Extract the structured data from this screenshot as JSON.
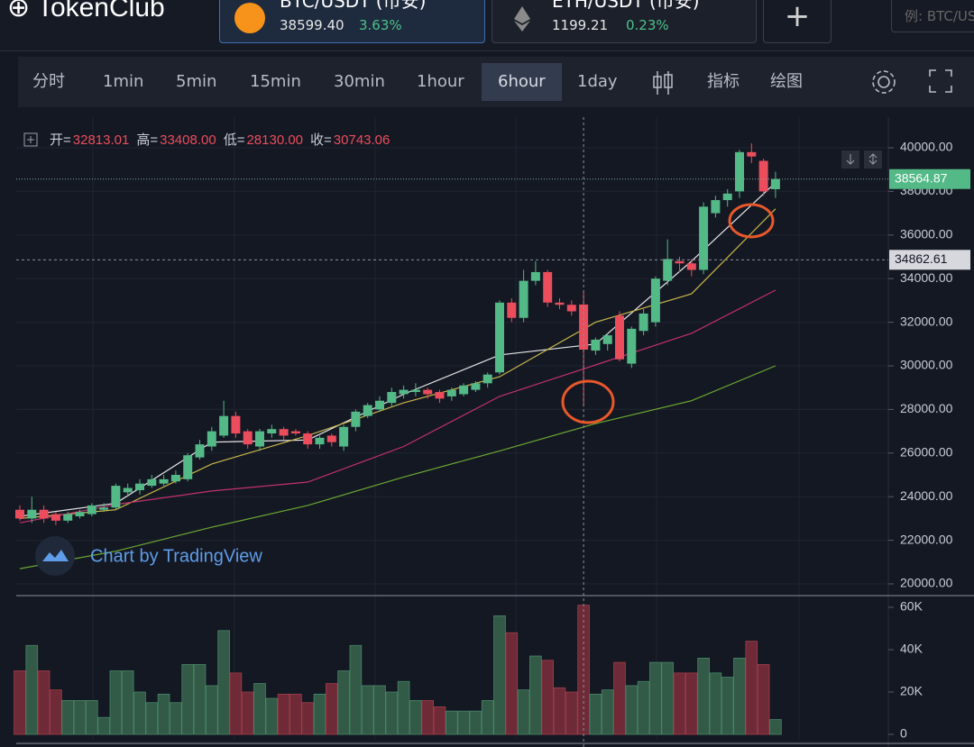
{
  "header": {
    "logo": "TokenClub",
    "tabs": [
      {
        "pair": "BTC/USDT (币安)",
        "price": "38599.40",
        "change": "3.63%"
      },
      {
        "pair": "ETH/USDT (币安)",
        "price": "1199.21",
        "change": "0.23%"
      }
    ],
    "add": "+",
    "search_placeholder": "例: BTC/USDT"
  },
  "toolbar": {
    "intervals": [
      "分时",
      "1min",
      "5min",
      "15min",
      "30min",
      "1hour",
      "6hour",
      "1day"
    ],
    "active": "6hour",
    "indicators": "指标",
    "drawing": "绘图"
  },
  "legend": [
    {
      "label": "开=",
      "value": "32813.01"
    },
    {
      "label": "高=",
      "value": "33408.00"
    },
    {
      "label": "低=",
      "value": "28130.00"
    },
    {
      "label": "收=",
      "value": "30743.06"
    }
  ],
  "watermark": "Chart by TradingView",
  "chart_data": {
    "type": "candlestick",
    "open": [
      23400,
      23000,
      23400,
      23200,
      22900,
      23100,
      23200,
      23400,
      23500,
      24200,
      24300,
      24500,
      24600,
      24700,
      24800,
      25800,
      26300,
      26800,
      27700,
      27000,
      26300,
      26900,
      27100,
      27000,
      26900,
      26400,
      26800,
      26300,
      27200,
      27700,
      28000,
      28300,
      28700,
      28800,
      28900,
      28800,
      28600,
      28700,
      28900,
      29200,
      29700,
      32900,
      32200,
      33900,
      34300,
      32900,
      32800,
      32813.01,
      30700,
      31000,
      32300,
      30100,
      31600,
      32000,
      33900,
      34800,
      34700,
      34400,
      37000,
      37600,
      38000,
      39800,
      39400,
      38100
    ],
    "high": [
      23600,
      24000,
      23600,
      23300,
      23300,
      23400,
      23700,
      23700,
      24600,
      24600,
      24800,
      25000,
      25000,
      25200,
      26000,
      26600,
      27200,
      28400,
      27900,
      27100,
      27100,
      27300,
      27200,
      27100,
      27000,
      26800,
      26900,
      27300,
      28000,
      28300,
      28600,
      29000,
      29100,
      29200,
      29000,
      28900,
      29000,
      29200,
      29300,
      29700,
      33000,
      33100,
      34400,
      34800,
      34400,
      33100,
      33000,
      33408,
      31300,
      31500,
      32500,
      31800,
      32600,
      34100,
      35800,
      35000,
      34900,
      37500,
      37800,
      38100,
      39900,
      40200,
      39500,
      38900
    ],
    "low": [
      22900,
      22800,
      22800,
      22700,
      22800,
      23000,
      23100,
      23300,
      23400,
      24000,
      24100,
      24400,
      24500,
      24600,
      24700,
      25700,
      26100,
      26700,
      26700,
      26200,
      26100,
      26700,
      26600,
      26800,
      26200,
      26200,
      26300,
      26100,
      27000,
      27600,
      27900,
      28100,
      28500,
      28600,
      28500,
      28300,
      28400,
      28600,
      28800,
      29000,
      29600,
      32000,
      32000,
      33700,
      32700,
      32600,
      32300,
      28130,
      30500,
      30700,
      30200,
      29900,
      31400,
      31800,
      33700,
      34300,
      34100,
      34200,
      36800,
      37300,
      37700,
      39300,
      37800,
      37700
    ],
    "close": [
      23000,
      23400,
      23000,
      22900,
      23200,
      23300,
      23600,
      23500,
      24500,
      24400,
      24600,
      24800,
      24800,
      25000,
      25900,
      26400,
      27000,
      27700,
      26900,
      26400,
      27000,
      27100,
      26800,
      26900,
      26400,
      26700,
      26500,
      27200,
      27900,
      28200,
      28400,
      28800,
      28900,
      28900,
      28700,
      28500,
      28900,
      29100,
      29200,
      29600,
      32900,
      32200,
      33900,
      34300,
      32900,
      32800,
      32500,
      30743.06,
      31200,
      31400,
      30300,
      31700,
      32400,
      34000,
      34900,
      34700,
      34400,
      37300,
      37600,
      37900,
      39800,
      39600,
      38000,
      38564.87
    ],
    "volume": [
      30000,
      42000,
      30000,
      21000,
      16000,
      16000,
      16000,
      8000,
      30000,
      30000,
      20000,
      15000,
      19000,
      15000,
      33000,
      33000,
      23000,
      49000,
      29000,
      20000,
      24000,
      17000,
      19000,
      19000,
      15000,
      19000,
      24000,
      30000,
      42000,
      23000,
      23000,
      20000,
      25000,
      16000,
      16000,
      13000,
      11000,
      11000,
      11000,
      16000,
      56000,
      48000,
      21000,
      37000,
      35000,
      22000,
      20000,
      61000,
      19000,
      21000,
      34000,
      23000,
      25000,
      34000,
      34000,
      29000,
      29000,
      36000,
      29000,
      27000,
      36000,
      44000,
      33000,
      7000
    ],
    "up_color": "#53b987",
    "down_color": "#eb4d5c",
    "moving_averages": [
      {
        "color": "#e8e8e8",
        "x": [
          0,
          8,
          16,
          24,
          32,
          40,
          48,
          56,
          63
        ],
        "values": [
          23100,
          23700,
          26500,
          26600,
          28700,
          30500,
          31000,
          34800,
          38400
        ]
      },
      {
        "color": "#c9b64a",
        "x": [
          0,
          8,
          16,
          24,
          32,
          40,
          48,
          56,
          63
        ],
        "values": [
          23000,
          23400,
          25500,
          26800,
          28300,
          29500,
          32000,
          33300,
          37200
        ]
      },
      {
        "color": "#c2306f",
        "x": [
          0,
          8,
          16,
          24,
          32,
          40,
          48,
          56,
          63
        ],
        "values": [
          22800,
          23640,
          24260,
          24670,
          26300,
          28600,
          30040,
          31490,
          33470
        ]
      },
      {
        "color": "#6aa832",
        "x": [
          0,
          8,
          16,
          24,
          32,
          40,
          48,
          56,
          63
        ],
        "values": [
          20700,
          21500,
          22600,
          23600,
          24900,
          26100,
          27350,
          28400,
          30000
        ]
      }
    ],
    "ylim": [
      19700,
      40900
    ],
    "yticks": [
      {
        "value": 20000,
        "label": "20000.00"
      },
      {
        "value": 22000,
        "label": "22000.00"
      },
      {
        "value": 24000,
        "label": "24000.00"
      },
      {
        "value": 26000,
        "label": "26000.00"
      },
      {
        "value": 28000,
        "label": "28000.00"
      },
      {
        "value": 30000,
        "label": "30000.00"
      },
      {
        "value": 32000,
        "label": "32000.00"
      },
      {
        "value": 34000,
        "label": "34000.00"
      },
      {
        "value": 36000,
        "label": "36000.00"
      },
      {
        "value": 38000,
        "label": "38000.00"
      },
      {
        "value": 40000,
        "label": "40000.00"
      }
    ],
    "y2lim": [
      0,
      60000
    ],
    "y2ticks": [
      0,
      {
        "value": 20000,
        "label": "20K"
      },
      {
        "value": 40000,
        "label": "40K"
      },
      {
        "value": 60000,
        "label": "60K"
      }
    ],
    "last_price": 38564.87,
    "crosshair_price": 34862.61,
    "crosshair_index": 47,
    "grid": true
  }
}
